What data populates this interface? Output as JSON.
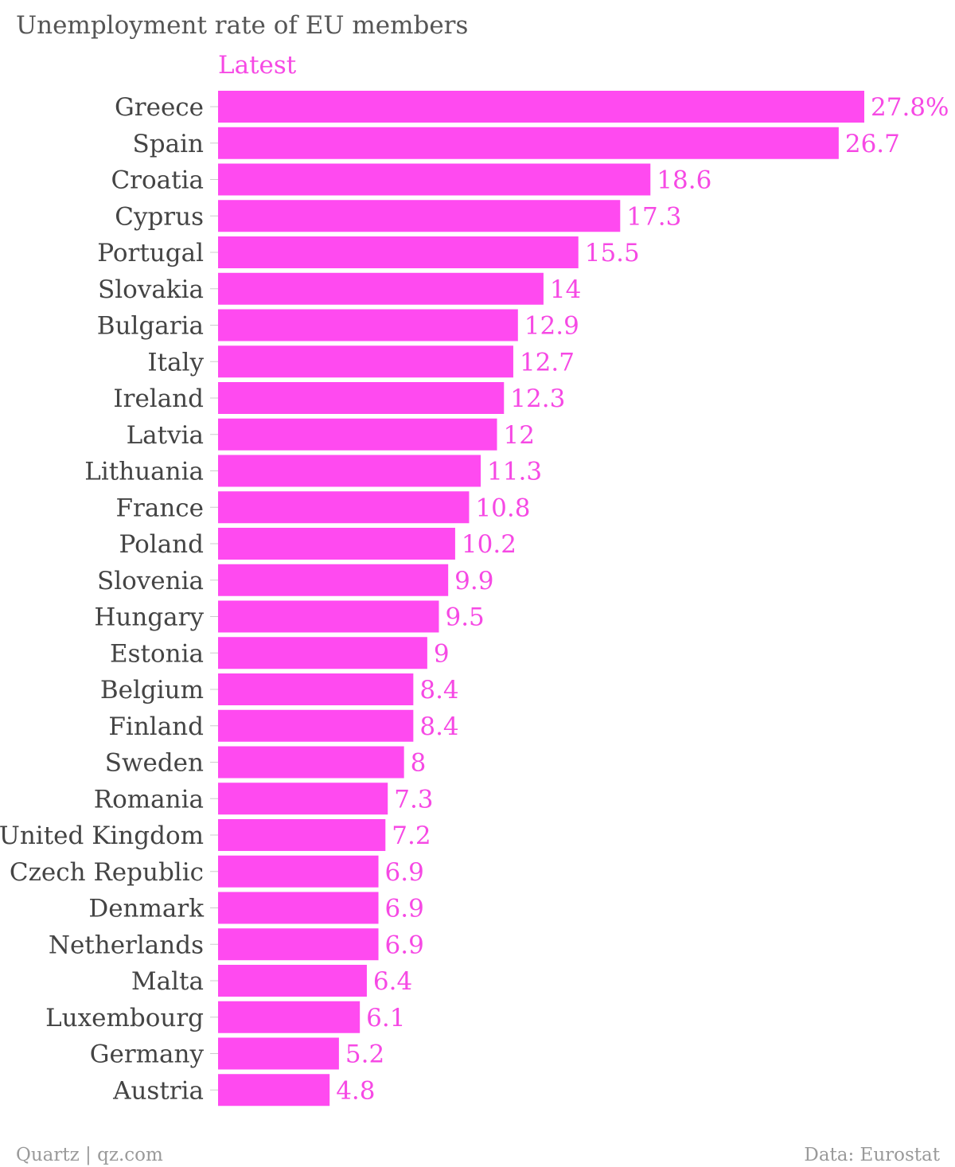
{
  "colors": {
    "bar": "#ff4af0",
    "accent_text": "#f649e4",
    "title": "#555555",
    "category_text": "#444444",
    "footer_text": "#9a9a9a"
  },
  "chart_data": {
    "type": "bar",
    "orientation": "horizontal",
    "title": "Unemployment rate of EU members",
    "series": [
      {
        "name": "Latest",
        "values": [
          27.8,
          26.7,
          18.6,
          17.3,
          15.5,
          14,
          12.9,
          12.7,
          12.3,
          12,
          11.3,
          10.8,
          10.2,
          9.9,
          9.5,
          9,
          8.4,
          8.4,
          8,
          7.3,
          7.2,
          6.9,
          6.9,
          6.9,
          6.4,
          6.1,
          5.2,
          4.8
        ]
      }
    ],
    "categories": [
      "Greece",
      "Spain",
      "Croatia",
      "Cyprus",
      "Portugal",
      "Slovakia",
      "Bulgaria",
      "Italy",
      "Ireland",
      "Latvia",
      "Lithuania",
      "France",
      "Poland",
      "Slovenia",
      "Hungary",
      "Estonia",
      "Belgium",
      "Finland",
      "Sweden",
      "Romania",
      "United Kingdom",
      "Czech Republic",
      "Denmark",
      "Netherlands",
      "Malta",
      "Luxembourg",
      "Germany",
      "Austria"
    ],
    "value_labels": [
      "27.8%",
      "26.7",
      "18.6",
      "17.3",
      "15.5",
      "14",
      "12.9",
      "12.7",
      "12.3",
      "12",
      "11.3",
      "10.8",
      "10.2",
      "9.9",
      "9.5",
      "9",
      "8.4",
      "8.4",
      "8",
      "7.3",
      "7.2",
      "6.9",
      "6.9",
      "6.9",
      "6.4",
      "6.1",
      "5.2",
      "4.8"
    ],
    "xlim": [
      0,
      27.8
    ],
    "grid": false,
    "legend": "top-left"
  },
  "footer": {
    "source_left": "Quartz | qz.com",
    "source_right": "Data: Eurostat"
  }
}
